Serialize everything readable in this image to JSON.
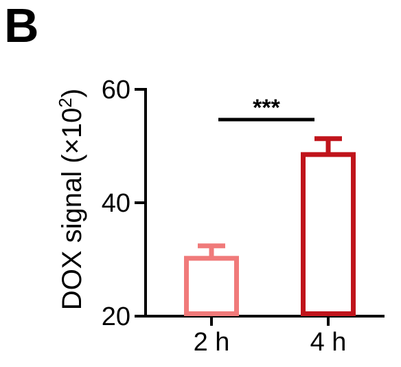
{
  "panel_label": "B",
  "chart_data": {
    "type": "bar",
    "categories": [
      "2 h",
      "4 h"
    ],
    "values": [
      30.2,
      48.5
    ],
    "errors": [
      2.2,
      2.8
    ],
    "ylabel": "DOX signal (×10²)",
    "ylim": [
      20,
      60
    ],
    "yticks": [
      "20",
      "40",
      "60"
    ],
    "grid": false,
    "colors": {
      "2 h": "#f07a7a",
      "4 h": "#c0141b"
    },
    "annotations": [
      {
        "text": "***",
        "between": [
          "2 h",
          "4 h"
        ]
      }
    ]
  }
}
